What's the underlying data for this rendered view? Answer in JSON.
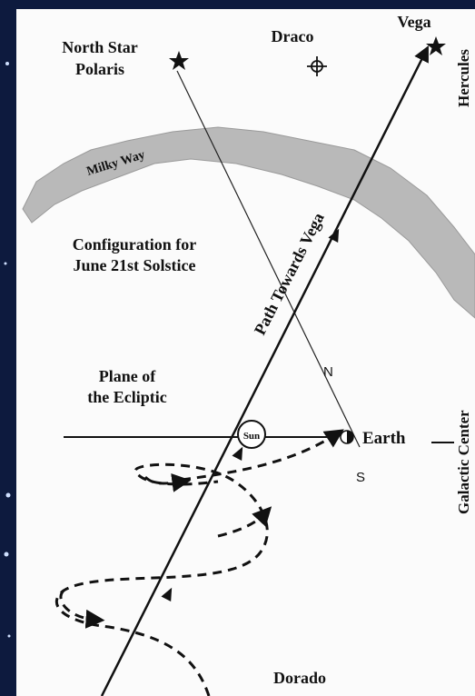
{
  "labels": {
    "north_star": "North Star",
    "polaris": "Polaris",
    "draco": "Draco",
    "vega": "Vega",
    "hercules": "Hercules",
    "milky_way": "Milky Way",
    "configuration_line1": "Configuration for",
    "configuration_line2": "June 21st Solstice",
    "path": "Path Towards Vega",
    "plane_line1": "Plane of",
    "plane_line2": "the Ecliptic",
    "sun": "Sun",
    "earth": "Earth",
    "north": "N",
    "south": "S",
    "galactic_center": "Galactic Center",
    "dorado": "Dorado"
  }
}
